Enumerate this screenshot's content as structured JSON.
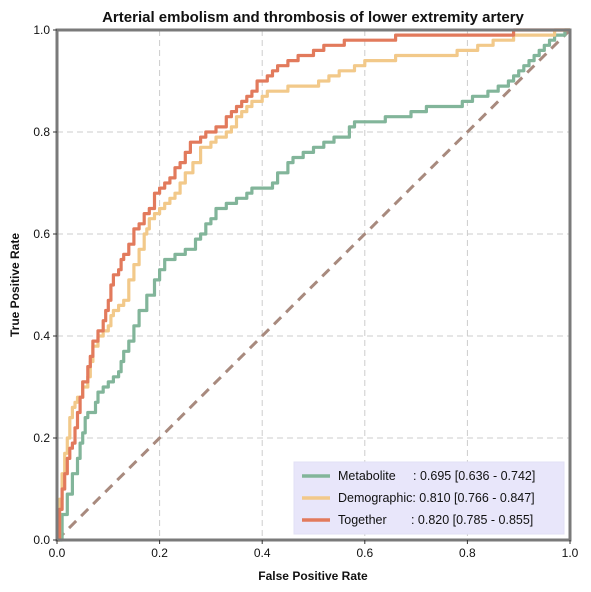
{
  "chart_data": {
    "type": "line",
    "title": "Arterial embolism and thrombosis of lower extremity artery",
    "xlabel": "False Positive Rate",
    "ylabel": "True Positive Rate",
    "xlim": [
      0,
      1
    ],
    "ylim": [
      0,
      1
    ],
    "xticks": [
      "0.0",
      "0.2",
      "0.4",
      "0.6",
      "0.8",
      "1.0"
    ],
    "yticks": [
      "0.0",
      "0.2",
      "0.4",
      "0.6",
      "0.8",
      "1.0"
    ],
    "grid": true,
    "legend_position": "bottom-right",
    "chance_line": {
      "points": [
        [
          0,
          0
        ],
        [
          1,
          1
        ]
      ],
      "style": "dashed",
      "color": "#a88a7e"
    },
    "series": [
      {
        "name": "Metabolite",
        "legend_label": "Metabolite     : 0.695 [0.636 - 0.742]",
        "color": "#82b59a",
        "points": [
          [
            0,
            0
          ],
          [
            0.01,
            0.05
          ],
          [
            0.02,
            0.09
          ],
          [
            0.03,
            0.13
          ],
          [
            0.04,
            0.16
          ],
          [
            0.045,
            0.19
          ],
          [
            0.05,
            0.21
          ],
          [
            0.055,
            0.24
          ],
          [
            0.06,
            0.25
          ],
          [
            0.07,
            0.25
          ],
          [
            0.075,
            0.27
          ],
          [
            0.08,
            0.29
          ],
          [
            0.09,
            0.3
          ],
          [
            0.1,
            0.31
          ],
          [
            0.11,
            0.32
          ],
          [
            0.12,
            0.33
          ],
          [
            0.125,
            0.35
          ],
          [
            0.13,
            0.37
          ],
          [
            0.14,
            0.39
          ],
          [
            0.15,
            0.42
          ],
          [
            0.16,
            0.45
          ],
          [
            0.175,
            0.48
          ],
          [
            0.19,
            0.51
          ],
          [
            0.2,
            0.53
          ],
          [
            0.21,
            0.55
          ],
          [
            0.23,
            0.56
          ],
          [
            0.25,
            0.57
          ],
          [
            0.27,
            0.59
          ],
          [
            0.28,
            0.6
          ],
          [
            0.29,
            0.62
          ],
          [
            0.3,
            0.63
          ],
          [
            0.31,
            0.65
          ],
          [
            0.33,
            0.66
          ],
          [
            0.35,
            0.67
          ],
          [
            0.37,
            0.68
          ],
          [
            0.38,
            0.69
          ],
          [
            0.42,
            0.7
          ],
          [
            0.43,
            0.72
          ],
          [
            0.45,
            0.74
          ],
          [
            0.46,
            0.75
          ],
          [
            0.48,
            0.76
          ],
          [
            0.5,
            0.77
          ],
          [
            0.52,
            0.78
          ],
          [
            0.54,
            0.79
          ],
          [
            0.57,
            0.81
          ],
          [
            0.58,
            0.82
          ],
          [
            0.64,
            0.83
          ],
          [
            0.69,
            0.84
          ],
          [
            0.72,
            0.85
          ],
          [
            0.79,
            0.86
          ],
          [
            0.8,
            0.86
          ],
          [
            0.81,
            0.87
          ],
          [
            0.84,
            0.88
          ],
          [
            0.86,
            0.89
          ],
          [
            0.88,
            0.9
          ],
          [
            0.89,
            0.91
          ],
          [
            0.9,
            0.92
          ],
          [
            0.91,
            0.93
          ],
          [
            0.92,
            0.94
          ],
          [
            0.93,
            0.95
          ],
          [
            0.94,
            0.96
          ],
          [
            0.95,
            0.97
          ],
          [
            0.96,
            0.98
          ],
          [
            0.97,
            0.99
          ],
          [
            0.99,
            1.0
          ],
          [
            1.0,
            1.0
          ]
        ]
      },
      {
        "name": "Demographic:",
        "legend_label": "Demographic: 0.810 [0.766 - 0.847]",
        "color": "#f2c98a",
        "points": [
          [
            0,
            0
          ],
          [
            0.005,
            0.08
          ],
          [
            0.01,
            0.13
          ],
          [
            0.015,
            0.17
          ],
          [
            0.02,
            0.2
          ],
          [
            0.025,
            0.24
          ],
          [
            0.03,
            0.26
          ],
          [
            0.035,
            0.27
          ],
          [
            0.04,
            0.28
          ],
          [
            0.05,
            0.3
          ],
          [
            0.06,
            0.32
          ],
          [
            0.065,
            0.35
          ],
          [
            0.07,
            0.38
          ],
          [
            0.08,
            0.4
          ],
          [
            0.09,
            0.41
          ],
          [
            0.1,
            0.42
          ],
          [
            0.105,
            0.44
          ],
          [
            0.11,
            0.45
          ],
          [
            0.12,
            0.46
          ],
          [
            0.13,
            0.47
          ],
          [
            0.14,
            0.51
          ],
          [
            0.15,
            0.54
          ],
          [
            0.16,
            0.57
          ],
          [
            0.17,
            0.6
          ],
          [
            0.175,
            0.61
          ],
          [
            0.18,
            0.63
          ],
          [
            0.19,
            0.64
          ],
          [
            0.2,
            0.65
          ],
          [
            0.21,
            0.66
          ],
          [
            0.22,
            0.67
          ],
          [
            0.23,
            0.68
          ],
          [
            0.24,
            0.7
          ],
          [
            0.25,
            0.72
          ],
          [
            0.265,
            0.74
          ],
          [
            0.28,
            0.77
          ],
          [
            0.3,
            0.78
          ],
          [
            0.31,
            0.79
          ],
          [
            0.33,
            0.8
          ],
          [
            0.34,
            0.81
          ],
          [
            0.35,
            0.83
          ],
          [
            0.36,
            0.84
          ],
          [
            0.37,
            0.85
          ],
          [
            0.38,
            0.86
          ],
          [
            0.4,
            0.87
          ],
          [
            0.41,
            0.88
          ],
          [
            0.43,
            0.88
          ],
          [
            0.45,
            0.89
          ],
          [
            0.5,
            0.89
          ],
          [
            0.51,
            0.9
          ],
          [
            0.53,
            0.91
          ],
          [
            0.55,
            0.92
          ],
          [
            0.58,
            0.93
          ],
          [
            0.6,
            0.94
          ],
          [
            0.63,
            0.94
          ],
          [
            0.66,
            0.95
          ],
          [
            0.72,
            0.95
          ],
          [
            0.78,
            0.96
          ],
          [
            0.8,
            0.96
          ],
          [
            0.82,
            0.97
          ],
          [
            0.85,
            0.98
          ],
          [
            0.87,
            0.98
          ],
          [
            0.89,
            0.99
          ],
          [
            0.92,
            0.99
          ],
          [
            0.95,
            0.99
          ],
          [
            0.97,
            1.0
          ],
          [
            1.0,
            1.0
          ]
        ]
      },
      {
        "name": "Together",
        "legend_label": "Together       : 0.820 [0.785 - 0.855]",
        "color": "#e27a5c",
        "points": [
          [
            0,
            0
          ],
          [
            0.005,
            0.06
          ],
          [
            0.01,
            0.1
          ],
          [
            0.015,
            0.13
          ],
          [
            0.02,
            0.16
          ],
          [
            0.025,
            0.18
          ],
          [
            0.03,
            0.19
          ],
          [
            0.035,
            0.22
          ],
          [
            0.04,
            0.25
          ],
          [
            0.045,
            0.28
          ],
          [
            0.05,
            0.31
          ],
          [
            0.06,
            0.34
          ],
          [
            0.065,
            0.36
          ],
          [
            0.07,
            0.39
          ],
          [
            0.08,
            0.41
          ],
          [
            0.09,
            0.43
          ],
          [
            0.095,
            0.45
          ],
          [
            0.1,
            0.47
          ],
          [
            0.105,
            0.5
          ],
          [
            0.11,
            0.52
          ],
          [
            0.12,
            0.53
          ],
          [
            0.125,
            0.55
          ],
          [
            0.13,
            0.56
          ],
          [
            0.14,
            0.58
          ],
          [
            0.15,
            0.61
          ],
          [
            0.16,
            0.62
          ],
          [
            0.17,
            0.64
          ],
          [
            0.18,
            0.65
          ],
          [
            0.19,
            0.68
          ],
          [
            0.2,
            0.69
          ],
          [
            0.21,
            0.7
          ],
          [
            0.22,
            0.71
          ],
          [
            0.23,
            0.73
          ],
          [
            0.24,
            0.74
          ],
          [
            0.25,
            0.76
          ],
          [
            0.26,
            0.78
          ],
          [
            0.28,
            0.79
          ],
          [
            0.29,
            0.8
          ],
          [
            0.31,
            0.81
          ],
          [
            0.33,
            0.83
          ],
          [
            0.34,
            0.84
          ],
          [
            0.35,
            0.85
          ],
          [
            0.36,
            0.86
          ],
          [
            0.37,
            0.87
          ],
          [
            0.38,
            0.88
          ],
          [
            0.39,
            0.9
          ],
          [
            0.4,
            0.9
          ],
          [
            0.41,
            0.91
          ],
          [
            0.42,
            0.92
          ],
          [
            0.43,
            0.93
          ],
          [
            0.45,
            0.94
          ],
          [
            0.47,
            0.95
          ],
          [
            0.5,
            0.96
          ],
          [
            0.52,
            0.97
          ],
          [
            0.56,
            0.98
          ],
          [
            0.62,
            0.98
          ],
          [
            0.66,
            0.99
          ],
          [
            0.8,
            0.99
          ],
          [
            0.87,
            0.99
          ],
          [
            0.89,
            1.0
          ],
          [
            1.0,
            1.0
          ]
        ]
      }
    ]
  }
}
